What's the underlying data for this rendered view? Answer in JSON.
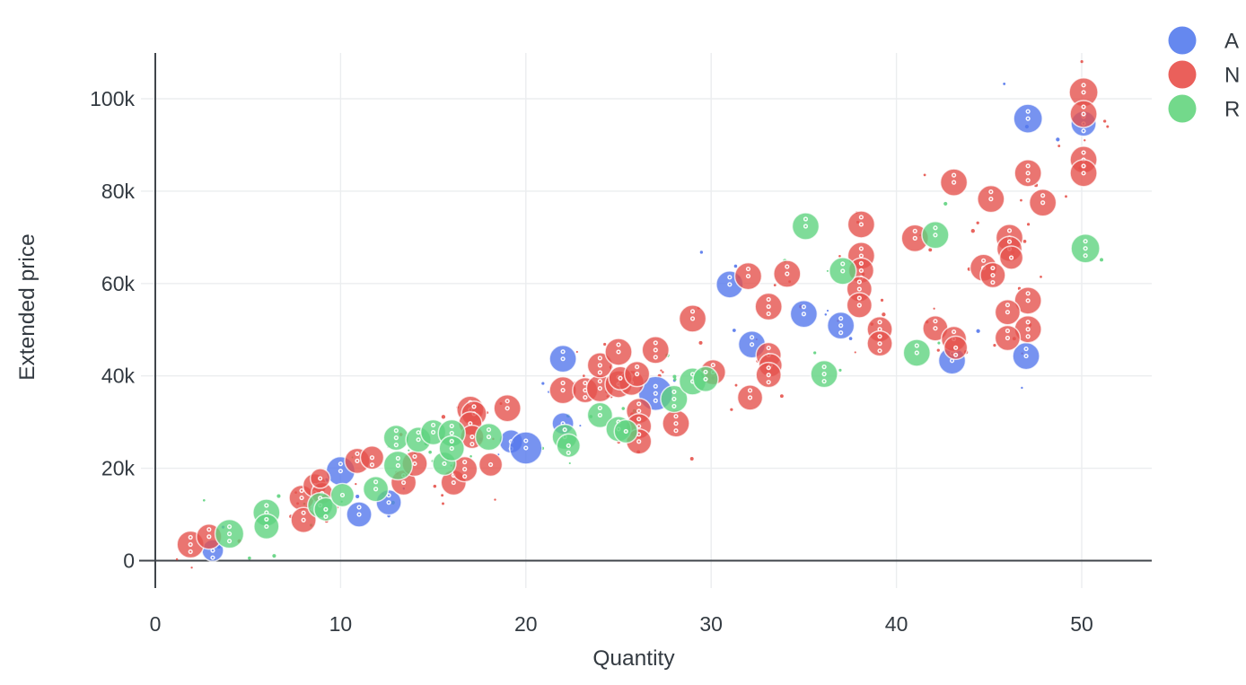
{
  "chart": {
    "type": "scatter",
    "subtype": "bubble",
    "title": "",
    "xlabel": "Quantity",
    "ylabel": "Extended price",
    "grid": true,
    "legend_position": "top-right",
    "x_tick_labels": [
      "0",
      "10",
      "20",
      "30",
      "40",
      "50"
    ],
    "x_tick_values": [
      0,
      10,
      20,
      30,
      40,
      50
    ],
    "y_tick_labels": [
      "0",
      "20k",
      "40k",
      "60k",
      "80k",
      "100k"
    ],
    "y_tick_values_k": [
      0,
      20,
      40,
      60,
      80,
      100
    ],
    "xlim": [
      -0.8,
      53.8
    ],
    "ylim_k": [
      -6,
      110
    ],
    "colors": {
      "grid": "#ebedef",
      "axis": "#40454b",
      "text": "#333a41",
      "background": "#ffffff"
    },
    "series": [
      {
        "name": "A",
        "legend_color": "#6588ef",
        "fill_color": "#5578ec",
        "points_format": "[quantity, extended_price_thousands, bubble_radius_px]",
        "points": [
          [
            3.1,
            2.2,
            12
          ],
          [
            10,
            19.4,
            16
          ],
          [
            11,
            10.0,
            14
          ],
          [
            12.6,
            12.6,
            14
          ],
          [
            19.2,
            25.8,
            13
          ],
          [
            20,
            24.4,
            18
          ],
          [
            22,
            29.7,
            12
          ],
          [
            22,
            43.7,
            15
          ],
          [
            27,
            36.2,
            19
          ],
          [
            31,
            59.8,
            15
          ],
          [
            32.2,
            46.8,
            15
          ],
          [
            35,
            53.4,
            15
          ],
          [
            37,
            50.9,
            15
          ],
          [
            43,
            43.3,
            15
          ],
          [
            47,
            44.3,
            15
          ],
          [
            47.1,
            95.7,
            16
          ],
          [
            50.1,
            94.6,
            14
          ]
        ]
      },
      {
        "name": "N",
        "legend_color": "#ea605b",
        "fill_color": "#e5534d",
        "points_format": "[quantity, extended_price_thousands, bubble_radius_px]",
        "points": [
          [
            1.9,
            3.5,
            15
          ],
          [
            2.9,
            5.2,
            14
          ],
          [
            7.9,
            13.6,
            14
          ],
          [
            8.0,
            8.8,
            14
          ],
          [
            8.6,
            16.3,
            13
          ],
          [
            9.0,
            14.6,
            12
          ],
          [
            8.9,
            17.8,
            11
          ],
          [
            10.9,
            21.6,
            14
          ],
          [
            11.7,
            22.3,
            13
          ],
          [
            13.4,
            16.9,
            14
          ],
          [
            14.0,
            21.0,
            14
          ],
          [
            16.1,
            16.9,
            14
          ],
          [
            16.7,
            19.8,
            14
          ],
          [
            17.0,
            32.7,
            15
          ],
          [
            17.2,
            31.8,
            14
          ],
          [
            17.0,
            29.7,
            13
          ],
          [
            17.1,
            26.8,
            13
          ],
          [
            18.1,
            20.8,
            13
          ],
          [
            19.0,
            33.0,
            15
          ],
          [
            22.0,
            36.9,
            15
          ],
          [
            23.2,
            36.9,
            14
          ],
          [
            24.0,
            37.3,
            15
          ],
          [
            25.0,
            38.2,
            15
          ],
          [
            25.7,
            38.5,
            14
          ],
          [
            24.0,
            42.3,
            14
          ],
          [
            25.0,
            45.2,
            15
          ],
          [
            25.1,
            39.5,
            13
          ],
          [
            26.0,
            40.4,
            14
          ],
          [
            27.0,
            45.6,
            15
          ],
          [
            26.1,
            32.4,
            14
          ],
          [
            26.1,
            29.1,
            14
          ],
          [
            26.1,
            25.8,
            14
          ],
          [
            28.1,
            29.7,
            15
          ],
          [
            29.0,
            52.4,
            15
          ],
          [
            30.1,
            40.8,
            14
          ],
          [
            32.0,
            61.6,
            15
          ],
          [
            33.1,
            55.0,
            15
          ],
          [
            34.1,
            62.1,
            15
          ],
          [
            33.1,
            44.5,
            14
          ],
          [
            33.2,
            42.3,
            13
          ],
          [
            33.1,
            40.2,
            14
          ],
          [
            32.1,
            35.3,
            14
          ],
          [
            38.1,
            72.8,
            15
          ],
          [
            38.1,
            66.0,
            15
          ],
          [
            38.1,
            62.8,
            14
          ],
          [
            38.0,
            58.8,
            14
          ],
          [
            38.0,
            55.3,
            14
          ],
          [
            39.1,
            50.1,
            14
          ],
          [
            39.1,
            47.0,
            14
          ],
          [
            41.0,
            69.8,
            15
          ],
          [
            42.1,
            50.3,
            14
          ],
          [
            43.1,
            48.0,
            14
          ],
          [
            43.2,
            46.1,
            13
          ],
          [
            43.1,
            81.9,
            15
          ],
          [
            45.1,
            78.3,
            15
          ],
          [
            44.7,
            63.4,
            15
          ],
          [
            45.2,
            61.8,
            14
          ],
          [
            46.1,
            69.9,
            15
          ],
          [
            46.1,
            67.5,
            14
          ],
          [
            46.2,
            65.6,
            13
          ],
          [
            47.1,
            83.9,
            15
          ],
          [
            47.9,
            77.5,
            15
          ],
          [
            47.1,
            56.3,
            15
          ],
          [
            46.0,
            53.8,
            14
          ],
          [
            47.1,
            50.1,
            15
          ],
          [
            46.0,
            48.2,
            14
          ],
          [
            50.1,
            101.4,
            16
          ],
          [
            50.1,
            96.7,
            15
          ],
          [
            50.1,
            86.8,
            15
          ],
          [
            50.1,
            83.9,
            15
          ]
        ]
      },
      {
        "name": "R",
        "legend_color": "#73d98b",
        "fill_color": "#5fd37f",
        "points_format": "[quantity, extended_price_thousands, bubble_radius_px]",
        "points": [
          [
            4.0,
            5.8,
            16
          ],
          [
            6.0,
            10.4,
            15
          ],
          [
            6.0,
            7.4,
            14
          ],
          [
            8.9,
            12.0,
            14
          ],
          [
            9.2,
            11.1,
            13
          ],
          [
            10.1,
            14.2,
            13
          ],
          [
            11.9,
            15.5,
            14
          ],
          [
            13.1,
            20.6,
            16
          ],
          [
            13.0,
            26.6,
            14
          ],
          [
            14.2,
            26.2,
            14
          ],
          [
            15.0,
            27.8,
            14
          ],
          [
            15.6,
            21.0,
            13
          ],
          [
            16.0,
            27.6,
            15
          ],
          [
            16.0,
            24.3,
            14
          ],
          [
            18.0,
            26.8,
            15
          ],
          [
            22.1,
            26.8,
            14
          ],
          [
            22.3,
            24.9,
            13
          ],
          [
            24.0,
            31.5,
            14
          ],
          [
            25.0,
            28.5,
            14
          ],
          [
            25.4,
            28.0,
            13
          ],
          [
            28.0,
            35.0,
            15
          ],
          [
            29.0,
            38.8,
            15
          ],
          [
            29.7,
            39.3,
            14
          ],
          [
            35.1,
            72.4,
            15
          ],
          [
            36.1,
            40.4,
            15
          ],
          [
            37.1,
            62.7,
            15
          ],
          [
            41.1,
            45.0,
            15
          ],
          [
            42.1,
            70.5,
            15
          ],
          [
            50.2,
            67.6,
            16
          ]
        ]
      }
    ]
  }
}
